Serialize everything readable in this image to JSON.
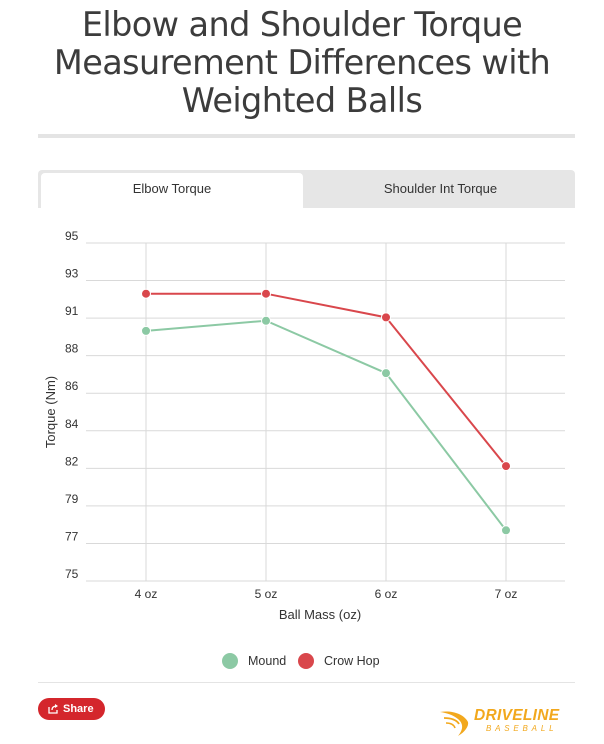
{
  "page": {
    "title": "Elbow and Shoulder Torque Measurement Differences with Weighted Balls"
  },
  "tabs": [
    {
      "label": "Elbow Torque",
      "active": true
    },
    {
      "label": "Shoulder Int Torque",
      "active": false
    }
  ],
  "chart_data": {
    "type": "line",
    "categories": [
      "4 oz",
      "5 oz",
      "6 oz",
      "7 oz"
    ],
    "xlabel": "Ball Mass (oz)",
    "ylabel": "Torque (Nm)",
    "ylim": [
      75,
      95
    ],
    "yticks": [
      "95",
      "93",
      "91",
      "88",
      "86",
      "84",
      "82",
      "79",
      "77",
      "75"
    ],
    "grid": true,
    "legend_position": "bottom",
    "series": [
      {
        "name": "Mound",
        "color": "#8cc9a4",
        "values": [
          89.8,
          90.4,
          87.3,
          78.0
        ]
      },
      {
        "name": "Crow Hop",
        "color": "#d9474c",
        "values": [
          92.0,
          92.0,
          90.6,
          81.8
        ]
      }
    ]
  },
  "footer": {
    "share_label": "Share",
    "share_icon": "share-icon",
    "logo_word": "DRIVELINE",
    "logo_sub": "BASEBALL",
    "logo_color": "#f2a81d",
    "share_color": "#d4262c"
  }
}
